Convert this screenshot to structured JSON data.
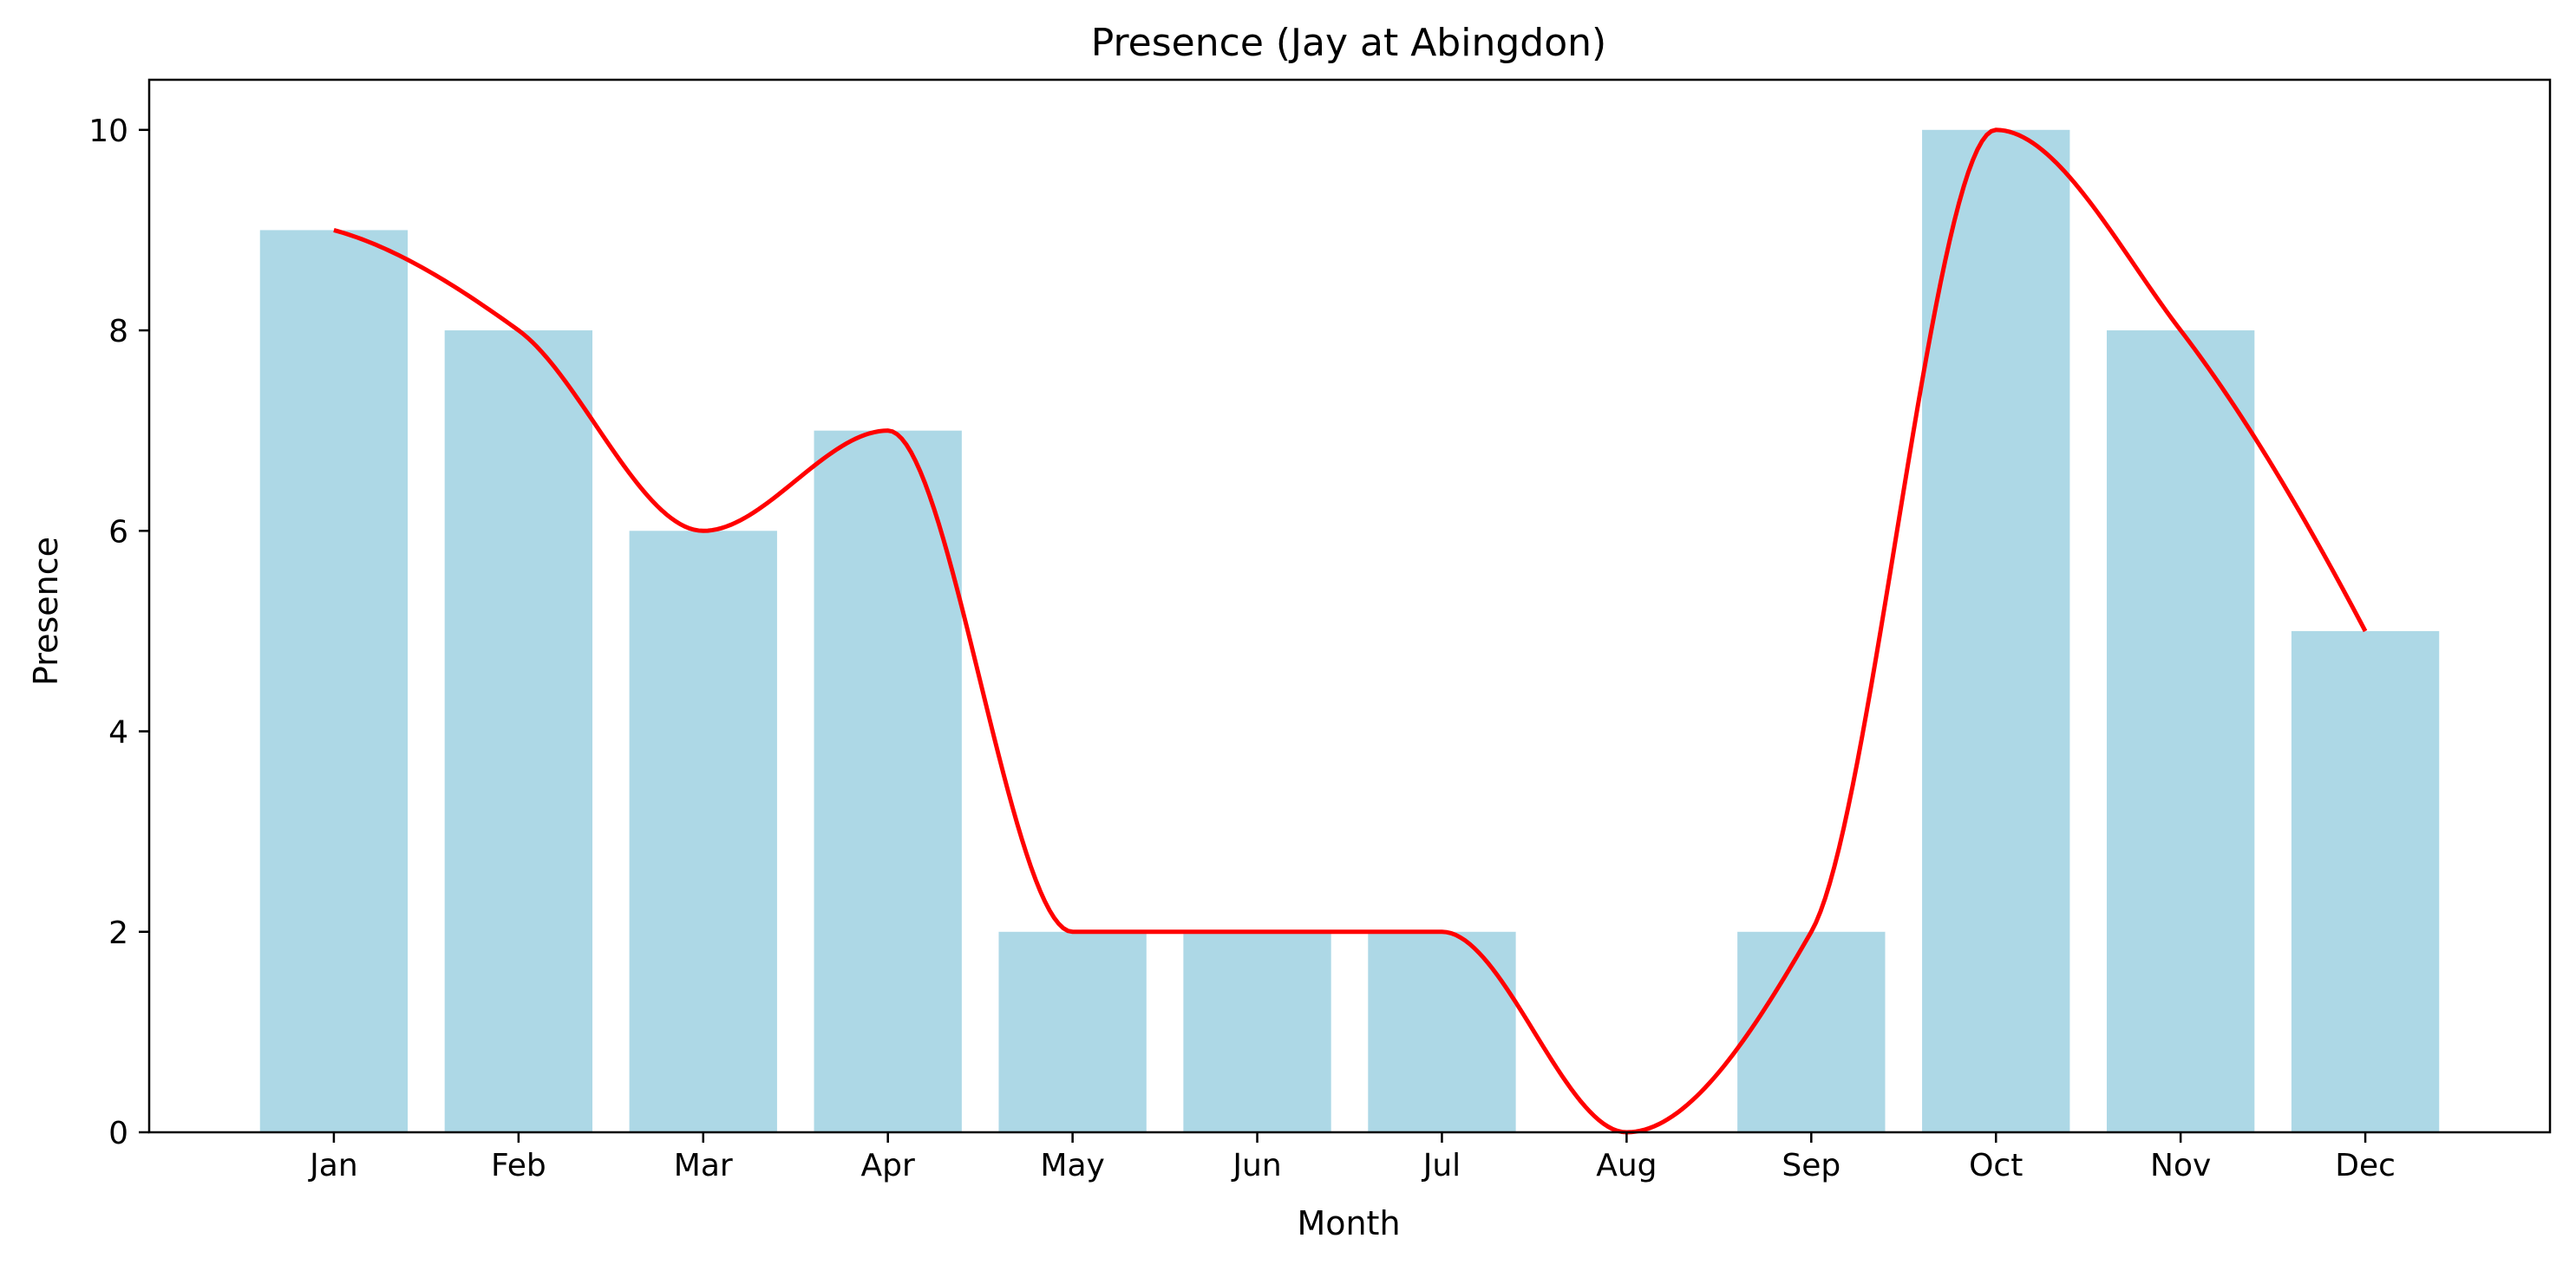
{
  "chart_data": {
    "type": "bar",
    "title": "Presence (Jay at Abingdon)",
    "xlabel": "Month",
    "ylabel": "Presence",
    "categories": [
      "Jan",
      "Feb",
      "Mar",
      "Apr",
      "May",
      "Jun",
      "Jul",
      "Aug",
      "Sep",
      "Oct",
      "Nov",
      "Dec"
    ],
    "values": [
      9,
      8,
      6,
      7,
      2,
      2,
      2,
      0,
      2,
      10,
      8,
      5
    ],
    "ylim": [
      0,
      10.5
    ],
    "yticks": [
      0,
      2,
      4,
      6,
      8,
      10
    ],
    "grid": false,
    "legend": "none",
    "bar_color": "#add8e6",
    "line_color": "#ff0000",
    "overlay": "smooth line through bar values"
  }
}
